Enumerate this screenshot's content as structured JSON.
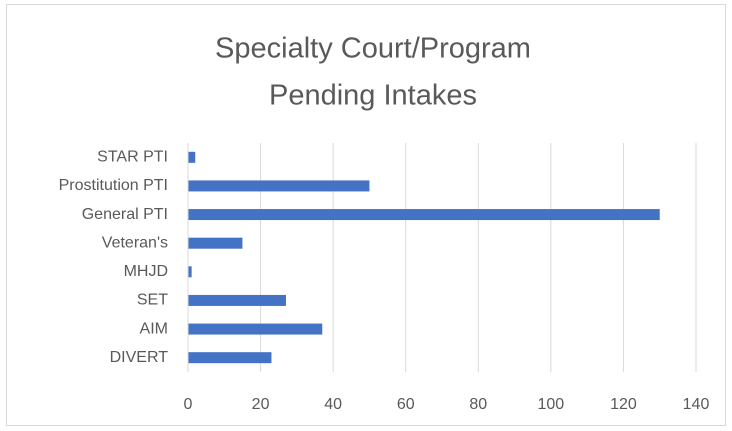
{
  "chart_data": {
    "type": "bar",
    "orientation": "horizontal",
    "title": [
      "Specialty Court/Program",
      "Pending Intakes"
    ],
    "categories": [
      "STAR PTI",
      "Prostitution PTI",
      "General PTI",
      "Veteran's",
      "MHJD",
      "SET",
      "AIM",
      "DIVERT"
    ],
    "values": [
      2,
      50,
      130,
      15,
      1,
      27,
      37,
      23
    ],
    "color": "#4472c4",
    "xlim": [
      0,
      140
    ],
    "xticks": [
      0,
      20,
      40,
      60,
      80,
      100,
      120,
      140
    ],
    "grid": true
  }
}
